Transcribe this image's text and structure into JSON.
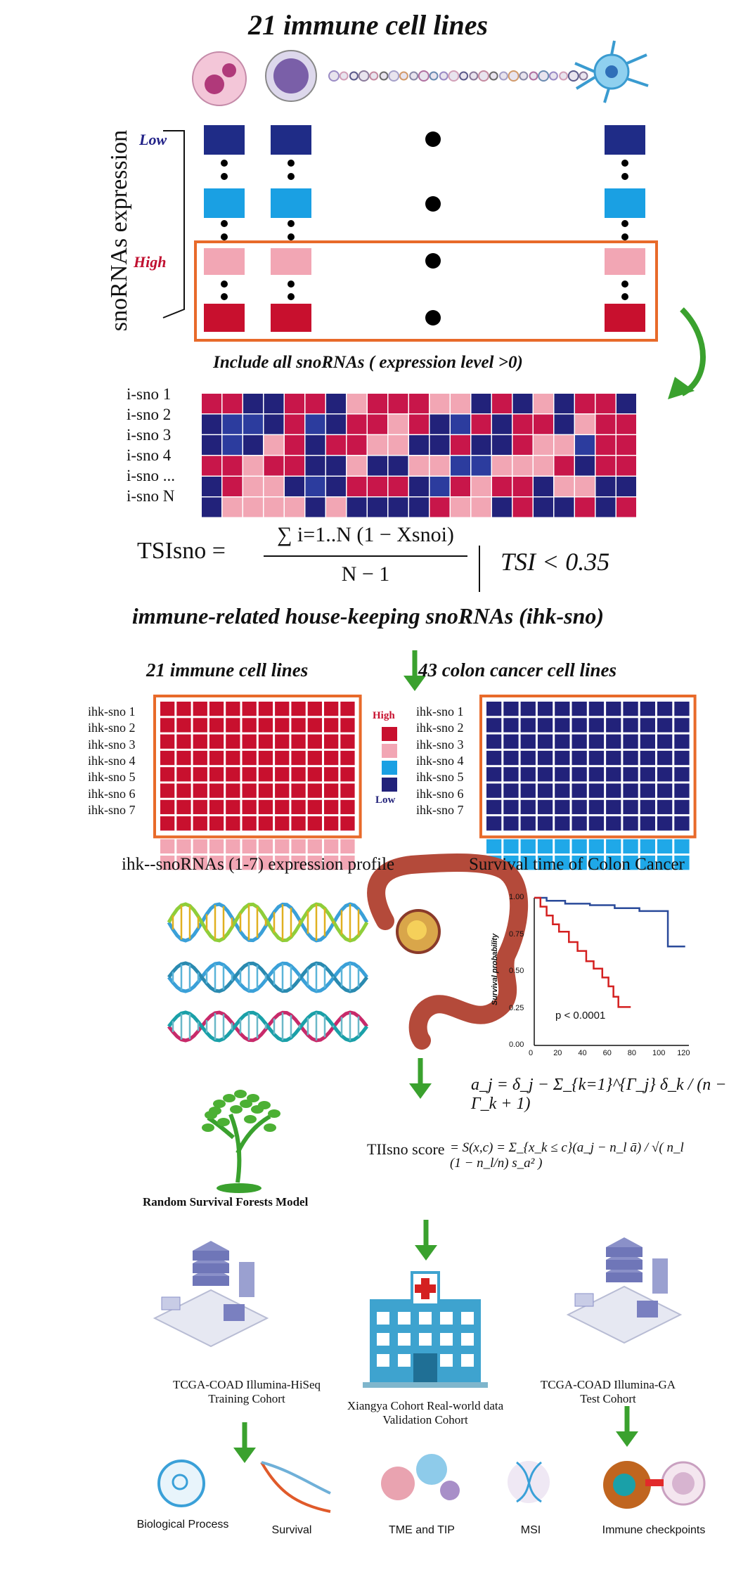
{
  "title": "21 immune cell lines",
  "panel1": {
    "axis_label": "snoRNAs expression",
    "low": "Low",
    "high": "High",
    "include": "Include all snoRNAs ( expression level >0)"
  },
  "heatmap1": {
    "rows": [
      "i-sno 1",
      "i-sno 2",
      "i-sno 3",
      "i-sno 4",
      "i-sno ...",
      "i-sno N"
    ]
  },
  "formula": {
    "tsi_lhs": "TSIsno =",
    "tsi_num": "∑ i=1..N (1 − Xsnoi)",
    "tsi_den": "N − 1",
    "tsi_cond": "TSI < 0.35"
  },
  "ihk_title": "immune-related house-keeping snoRNAs (ihk-sno)",
  "left_block": {
    "title": "21 immune cell lines",
    "rows": [
      "ihk-sno 1",
      "ihk-sno 2",
      "ihk-sno 3",
      "ihk-sno 4",
      "ihk-sno 5",
      "ihk-sno 6",
      "ihk-sno 7"
    ],
    "caption": "ihk--snoRNAs (1-7) expression profile"
  },
  "legend": {
    "high": "High",
    "low": "Low",
    "colors": [
      "#c8102e",
      "#f2a3b0",
      "#1fa3e0",
      "#22227a"
    ]
  },
  "right_block": {
    "title": "43 colon cancer cell lines",
    "rows": [
      "ihk-sno 1",
      "ihk-sno 2",
      "ihk-sno 3",
      "ihk-sno 4",
      "ihk-sno 5",
      "ihk-sno 6",
      "ihk-sno 7"
    ],
    "caption": "Survival time of Colon Cancer"
  },
  "km_plot": {
    "ylabel": "Survival probability",
    "pvalue": "p < 0.0001",
    "yticks": [
      "1.00",
      "0.75",
      "0.50",
      "0.25",
      "0.00"
    ],
    "xticks": [
      "0",
      "20",
      "40",
      "60",
      "80",
      "100",
      "120"
    ]
  },
  "model": {
    "rsf_label": "Random Survival Forests Model",
    "aj": "a_j = δ_j − Σ_{k=1}^{Γ_j} δ_k / (n − Γ_k + 1)",
    "score_label": "TIIsno score",
    "score": "= S(x,c) = Σ_{x_k ≤ c}(a_j − n_l ā) / √( n_l (1 − n_l/n) s_a² )"
  },
  "cohorts": {
    "training": [
      "TCGA-COAD Illumina-HiSeq",
      "Training Cohort"
    ],
    "validation": [
      "Xiangya Cohort Real-world data",
      "Validation Cohort"
    ],
    "test": [
      "TCGA-COAD Illumina-GA",
      "Test Cohort"
    ]
  },
  "outputs": [
    "Biological Process",
    "Survival",
    "TME and TIP",
    "MSI",
    "Immune checkpoints"
  ]
}
